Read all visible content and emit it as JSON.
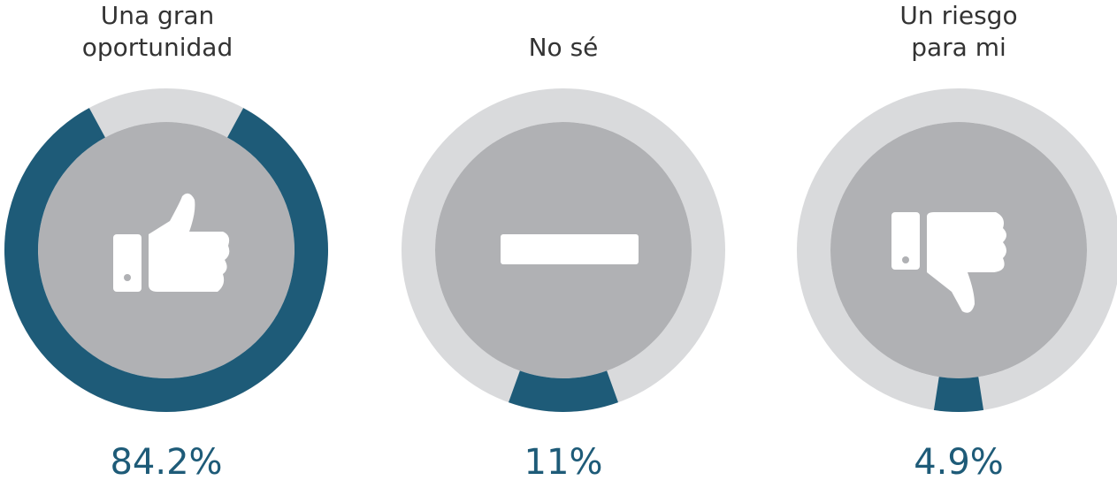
{
  "chart_data": [
    {
      "type": "donut",
      "title": "Una gran oportunidad",
      "values": [
        84.2
      ],
      "value_labels": [
        "84.2%"
      ],
      "color": "#1e5b78"
    },
    {
      "type": "donut",
      "title": "No sé",
      "values": [
        11
      ],
      "value_labels": [
        "11%"
      ],
      "color": "#1e5b78"
    },
    {
      "type": "donut",
      "title": "Un riesgo para mi",
      "values": [
        4.9
      ],
      "value_labels": [
        "4.9%"
      ],
      "color": "#1e5b78"
    }
  ]
}
